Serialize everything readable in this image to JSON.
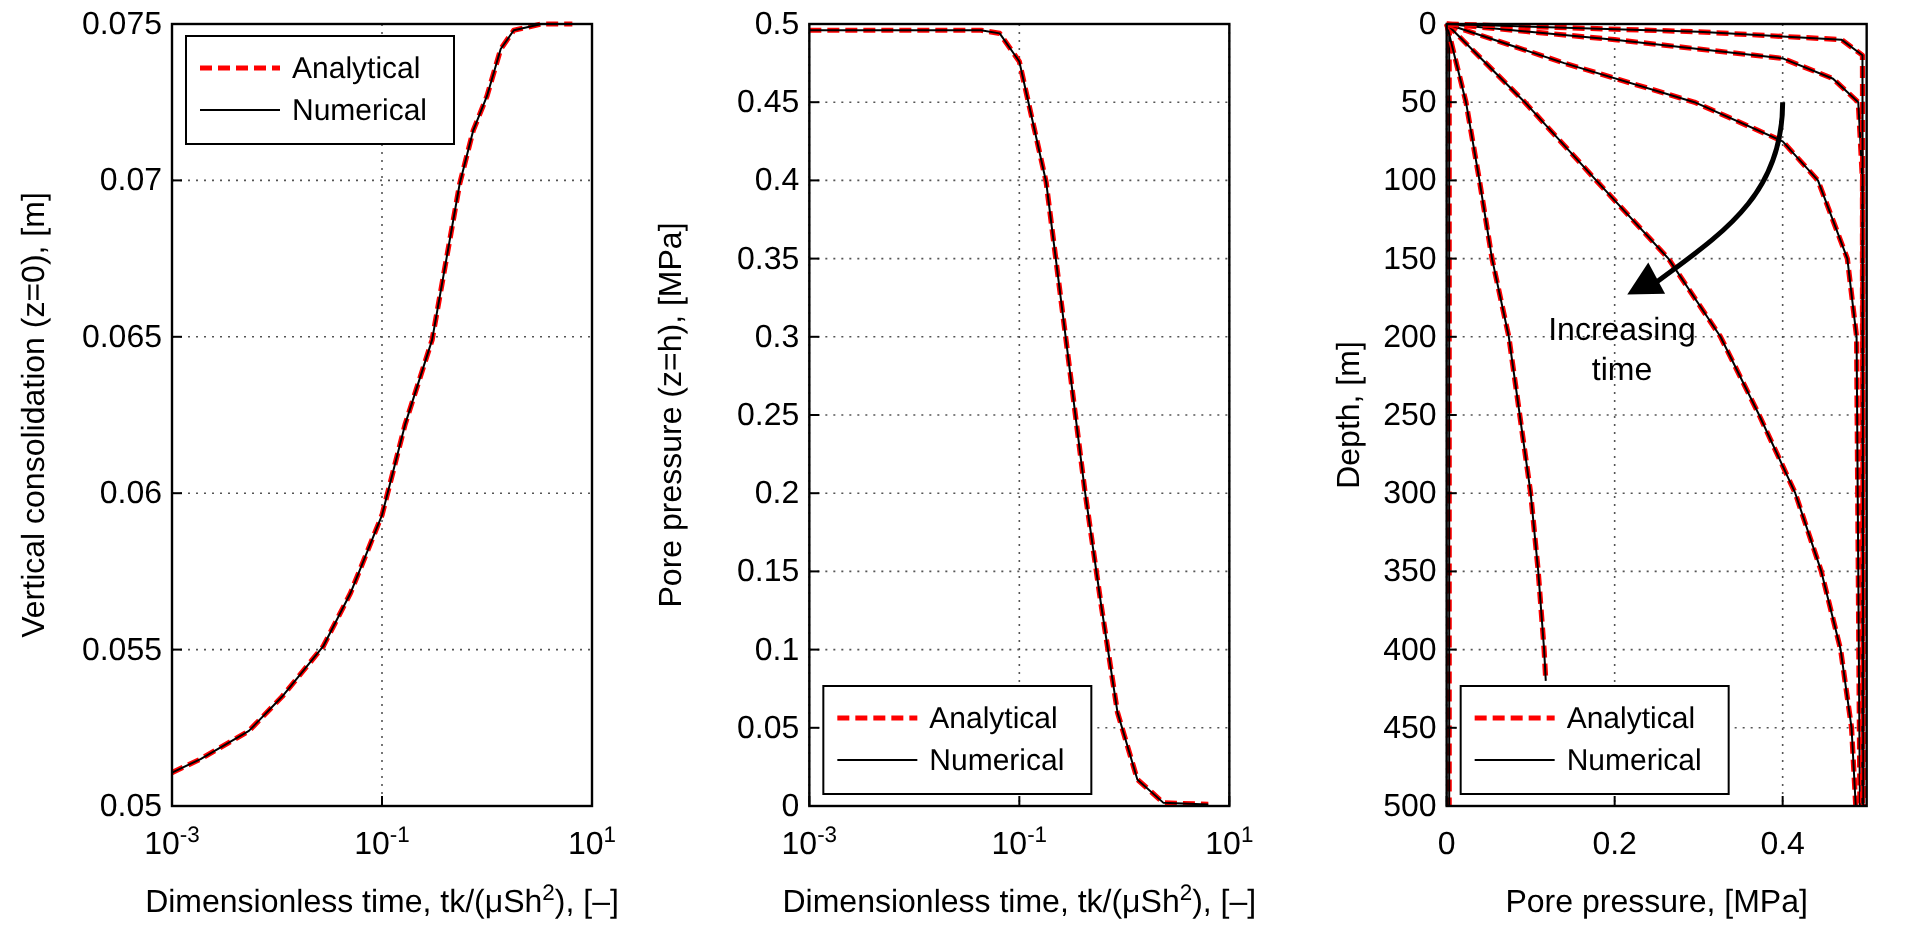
{
  "chart_data": [
    {
      "type": "line",
      "xlabel": "Dimensionless time, tk/(μSh$^{2}$), [–]",
      "ylabel": "Vertical consolidation (z=0), [m]",
      "log": "x",
      "grid": true,
      "legend": "top left",
      "xlim": [
        0.001,
        10
      ],
      "xticks": [
        {
          "value": 0.001,
          "label": "10$^{-3}$"
        },
        {
          "value": 0.1,
          "label": "10$^{-1}$"
        },
        {
          "value": 10,
          "label": "10$^{1}$"
        }
      ],
      "ylim": [
        0.05,
        0.075
      ],
      "yticks": [
        0.05,
        0.055,
        0.06,
        0.065,
        0.07,
        0.075
      ],
      "x": [
        0.001,
        0.00187,
        0.0054,
        0.0112,
        0.0275,
        0.05,
        0.1,
        0.166,
        0.3,
        0.55,
        0.74,
        1.0,
        1.35,
        1.8,
        3.3,
        6.5
      ],
      "series": [
        {
          "name": "Analytical",
          "color": "#ff0000",
          "line_style": "dashed",
          "values": [
            0.05107,
            0.0515,
            0.0524,
            0.0535,
            0.0551,
            0.0568,
            0.0593,
            0.0622,
            0.0649,
            0.0699,
            0.0716,
            0.0727,
            0.0742,
            0.0748,
            0.075,
            0.075
          ]
        },
        {
          "name": "Numerical",
          "color": "#000000",
          "line_style": "solid",
          "values": [
            0.05107,
            0.0515,
            0.0524,
            0.0535,
            0.0551,
            0.0568,
            0.0593,
            0.0622,
            0.0649,
            0.0699,
            0.0716,
            0.0727,
            0.0742,
            0.0748,
            0.075,
            0.075
          ]
        }
      ]
    },
    {
      "type": "line",
      "xlabel": "Dimensionless time, tk/(μSh$^{2}$), [–]",
      "ylabel": "Pore pressure (z=h), [MPa]",
      "log": "x",
      "grid": true,
      "legend": "bottom left",
      "xlim": [
        0.001,
        10
      ],
      "xticks": [
        {
          "value": 0.001,
          "label": "10$^{-3}$"
        },
        {
          "value": 0.1,
          "label": "10$^{-1}$"
        },
        {
          "value": 10,
          "label": "10$^{1}$"
        }
      ],
      "ylim": [
        0,
        0.5
      ],
      "yticks": [
        0,
        0.05,
        0.1,
        0.15,
        0.2,
        0.25,
        0.3,
        0.35,
        0.4,
        0.45,
        0.5
      ],
      "x": [
        0.001,
        0.01,
        0.043,
        0.065,
        0.1,
        0.18,
        0.276,
        0.42,
        0.6,
        0.86,
        1.33,
        2.36,
        6.3
      ],
      "series": [
        {
          "name": "Analytical",
          "color": "#ff0000",
          "line_style": "dashed",
          "values": [
            0.496,
            0.496,
            0.496,
            0.494,
            0.476,
            0.399,
            0.3,
            0.202,
            0.129,
            0.06,
            0.017,
            0.002,
            0.001
          ]
        },
        {
          "name": "Numerical",
          "color": "#000000",
          "line_style": "solid",
          "values": [
            0.496,
            0.496,
            0.496,
            0.494,
            0.476,
            0.399,
            0.3,
            0.202,
            0.129,
            0.06,
            0.017,
            0.002,
            0.001
          ]
        }
      ]
    },
    {
      "type": "line",
      "xlabel": "Pore pressure, [MPa]",
      "ylabel": "Depth, [m]",
      "grid": true,
      "legend": "bottom left",
      "annotations": [
        "Increasing time"
      ],
      "xlim": [
        0,
        0.5
      ],
      "xticks": [
        0,
        0.2,
        0.4
      ],
      "ylim": [
        500,
        0
      ],
      "yticks": [
        0,
        50,
        100,
        150,
        200,
        250,
        300,
        350,
        400,
        450,
        500
      ],
      "series": [
        {
          "name": "Analytical",
          "color": "#ff0000",
          "line_style": "dashed",
          "x": [
            0,
            0.003,
            0.003
          ],
          "values": [
            0,
            5,
            500
          ]
        },
        {
          "name": "Numerical",
          "color": "#000000",
          "line_style": "solid",
          "x": [
            0,
            0.003,
            0.003
          ],
          "values": [
            0,
            5,
            500
          ]
        },
        {
          "color": "#ff0000",
          "line_style": "dashed",
          "x": [
            0,
            0.023,
            0.039,
            0.054,
            0.074,
            0.087,
            0.1,
            0.109,
            0.116,
            0.118
          ],
          "values": [
            0,
            50,
            100,
            150,
            200,
            250,
            300,
            350,
            400,
            420
          ]
        },
        {
          "color": "#000000",
          "line_style": "solid",
          "x": [
            0,
            0.023,
            0.039,
            0.054,
            0.074,
            0.087,
            0.1,
            0.109,
            0.116,
            0.118
          ],
          "values": [
            0,
            50,
            100,
            150,
            200,
            250,
            300,
            350,
            400,
            420
          ]
        },
        {
          "color": "#ff0000",
          "line_style": "dashed",
          "x": [
            0,
            0.093,
            0.178,
            0.264,
            0.326,
            0.372,
            0.415,
            0.446,
            0.469,
            0.482,
            0.487
          ],
          "values": [
            0,
            50,
            100,
            150,
            200,
            250,
            300,
            350,
            400,
            450,
            500
          ]
        },
        {
          "color": "#000000",
          "line_style": "solid",
          "x": [
            0,
            0.093,
            0.178,
            0.264,
            0.326,
            0.372,
            0.415,
            0.446,
            0.469,
            0.482,
            0.487
          ],
          "values": [
            0,
            50,
            100,
            150,
            200,
            250,
            300,
            350,
            400,
            450,
            500
          ]
        },
        {
          "color": "#ff0000",
          "line_style": "dashed",
          "x": [
            0,
            0.14,
            0.295,
            0.4,
            0.442,
            0.477,
            0.488,
            0.492
          ],
          "values": [
            0,
            25,
            50,
            75,
            100,
            150,
            200,
            500
          ]
        },
        {
          "color": "#000000",
          "line_style": "solid",
          "x": [
            0,
            0.14,
            0.295,
            0.4,
            0.442,
            0.477,
            0.488,
            0.492
          ],
          "values": [
            0,
            25,
            50,
            75,
            100,
            150,
            200,
            500
          ]
        },
        {
          "color": "#ff0000",
          "line_style": "dashed",
          "x": [
            0,
            0.2,
            0.4,
            0.46,
            0.49,
            0.495,
            0.495
          ],
          "values": [
            0,
            10,
            22,
            35,
            50,
            100,
            500
          ]
        },
        {
          "color": "#000000",
          "line_style": "solid",
          "x": [
            0,
            0.2,
            0.4,
            0.46,
            0.49,
            0.495,
            0.495
          ],
          "values": [
            0,
            10,
            22,
            35,
            50,
            100,
            500
          ]
        },
        {
          "color": "#ff0000",
          "line_style": "dashed",
          "x": [
            0,
            0.3,
            0.47,
            0.495,
            0.496
          ],
          "values": [
            0,
            5,
            10,
            20,
            500
          ]
        },
        {
          "color": "#000000",
          "line_style": "solid",
          "x": [
            0,
            0.3,
            0.47,
            0.495,
            0.496
          ],
          "values": [
            0,
            5,
            10,
            20,
            500
          ]
        }
      ]
    }
  ]
}
